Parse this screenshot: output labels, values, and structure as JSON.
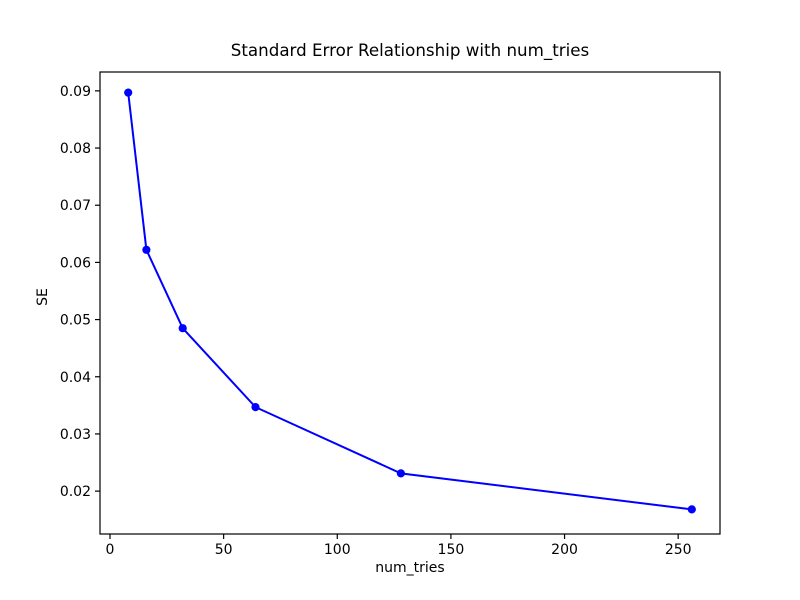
{
  "figure": {
    "background": "#ffffff",
    "foreground": "#000000"
  },
  "chart_data": {
    "type": "line",
    "title": "Standard Error Relationship with num_tries",
    "xlabel": "num_tries",
    "ylabel": "SE",
    "x": [
      8,
      16,
      32,
      64,
      128,
      256
    ],
    "y": [
      0.0897,
      0.0622,
      0.0485,
      0.0347,
      0.0231,
      0.0168
    ],
    "series_name": "SE vs num_tries",
    "xlim": [
      -4.4,
      268.4
    ],
    "ylim": [
      0.0125,
      0.0933
    ],
    "xticks": [
      0,
      50,
      100,
      150,
      200,
      250
    ],
    "xtick_labels": [
      "0",
      "50",
      "100",
      "150",
      "200",
      "250"
    ],
    "yticks": [
      0.02,
      0.03,
      0.04,
      0.05,
      0.06,
      0.07,
      0.08,
      0.09
    ],
    "ytick_labels": [
      "0.02",
      "0.03",
      "0.04",
      "0.05",
      "0.06",
      "0.07",
      "0.08",
      "0.09"
    ],
    "line_color": "#0000ff",
    "marker": "o",
    "marker_radius": 4.1,
    "line_width": 2,
    "axes_color": "#000000",
    "grid": false,
    "legend_position": "none"
  }
}
